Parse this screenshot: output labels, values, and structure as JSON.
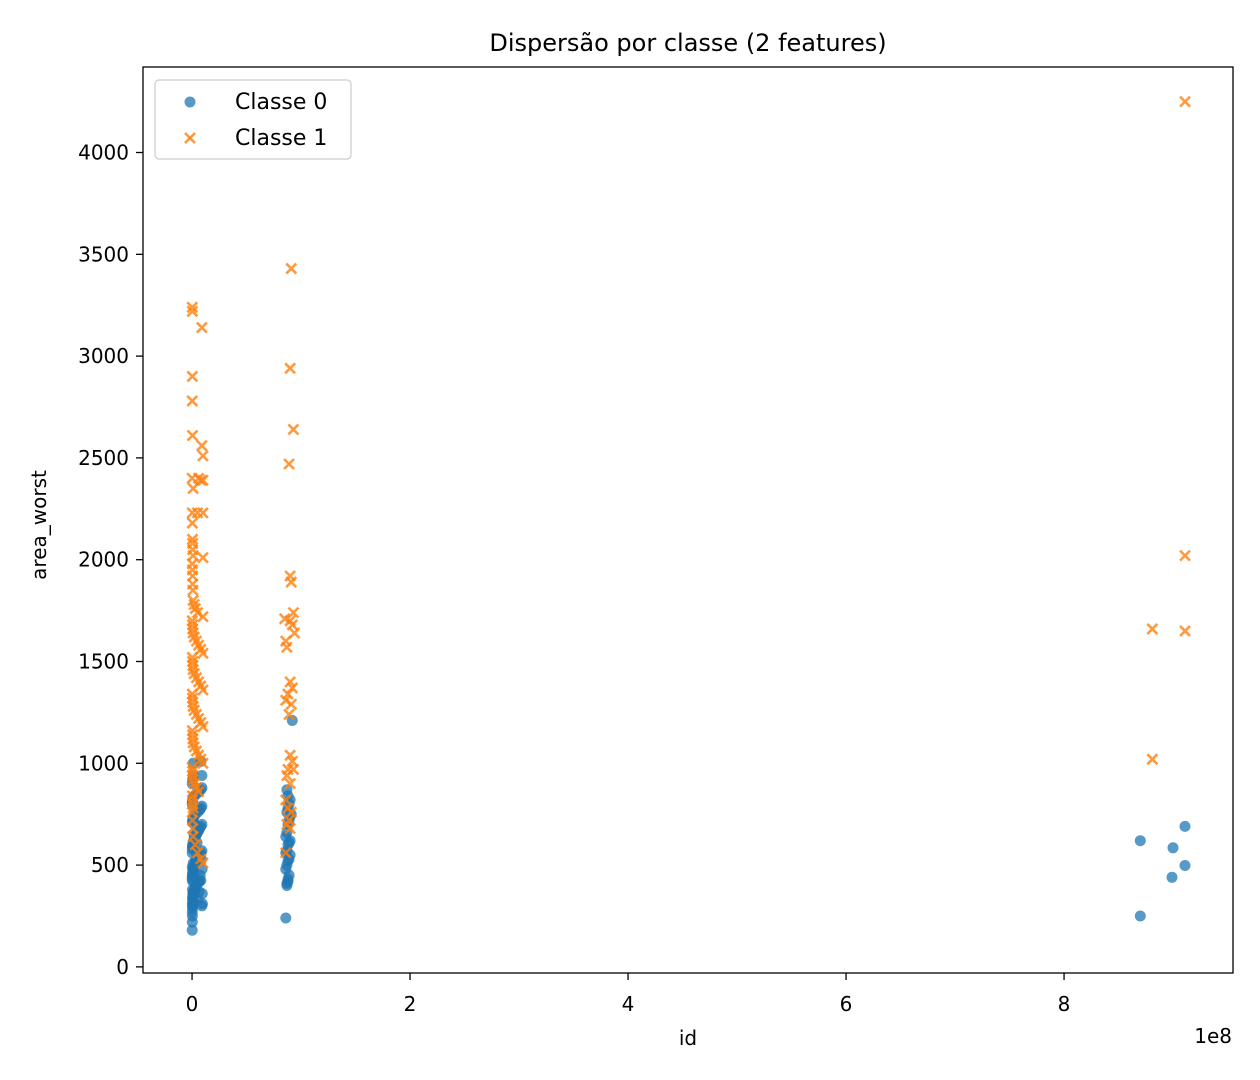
{
  "chart_data": {
    "type": "scatter",
    "title": "Dispersão por classe (2 features)",
    "xlabel": "id",
    "ylabel": "area_worst",
    "x_offset_label": "1e8",
    "x_scale": 100000000,
    "xlim": [
      -0.45,
      9.55
    ],
    "ylim": [
      -30,
      4420
    ],
    "x_ticks": [
      0,
      2,
      4,
      6,
      8
    ],
    "y_ticks": [
      0,
      500,
      1000,
      1500,
      2000,
      2500,
      3000,
      3500,
      4000
    ],
    "legend_position": "upper left",
    "grid": false,
    "series": [
      {
        "name": "Classe 0",
        "marker": "circle",
        "color": "#1f77b4",
        "points": [
          [
            0.001,
            180
          ],
          [
            0.002,
            220
          ],
          [
            0.003,
            250
          ],
          [
            0.002,
            270
          ],
          [
            0.004,
            290
          ],
          [
            0.005,
            300
          ],
          [
            0.003,
            310
          ],
          [
            0.006,
            320
          ],
          [
            0.008,
            330
          ],
          [
            0.004,
            340
          ],
          [
            0.01,
            350
          ],
          [
            0.012,
            355
          ],
          [
            0.007,
            360
          ],
          [
            0.015,
            370
          ],
          [
            0.02,
            375
          ],
          [
            0.025,
            380
          ],
          [
            0.03,
            390
          ],
          [
            0.035,
            400
          ],
          [
            0.04,
            405
          ],
          [
            0.05,
            410
          ],
          [
            0.06,
            415
          ],
          [
            0.07,
            420
          ],
          [
            0.08,
            425
          ],
          [
            0.09,
            300
          ],
          [
            0.095,
            310
          ],
          [
            0.001,
            430
          ],
          [
            0.002,
            440
          ],
          [
            0.003,
            450
          ],
          [
            0.005,
            460
          ],
          [
            0.008,
            470
          ],
          [
            0.01,
            480
          ],
          [
            0.015,
            490
          ],
          [
            0.02,
            500
          ],
          [
            0.03,
            510
          ],
          [
            0.04,
            520
          ],
          [
            0.05,
            530
          ],
          [
            0.06,
            540
          ],
          [
            0.07,
            550
          ],
          [
            0.08,
            560
          ],
          [
            0.09,
            570
          ],
          [
            0.002,
            580
          ],
          [
            0.004,
            590
          ],
          [
            0.006,
            600
          ],
          [
            0.01,
            610
          ],
          [
            0.015,
            620
          ],
          [
            0.02,
            630
          ],
          [
            0.03,
            640
          ],
          [
            0.04,
            650
          ],
          [
            0.05,
            660
          ],
          [
            0.06,
            670
          ],
          [
            0.07,
            680
          ],
          [
            0.08,
            690
          ],
          [
            0.09,
            700
          ],
          [
            0.003,
            710
          ],
          [
            0.006,
            720
          ],
          [
            0.01,
            730
          ],
          [
            0.02,
            740
          ],
          [
            0.03,
            750
          ],
          [
            0.05,
            760
          ],
          [
            0.07,
            770
          ],
          [
            0.08,
            780
          ],
          [
            0.09,
            790
          ],
          [
            0.001,
            800
          ],
          [
            0.003,
            810
          ],
          [
            0.005,
            820
          ],
          [
            0.01,
            830
          ],
          [
            0.02,
            840
          ],
          [
            0.04,
            850
          ],
          [
            0.06,
            860
          ],
          [
            0.08,
            870
          ],
          [
            0.09,
            880
          ],
          [
            0.002,
            900
          ],
          [
            0.005,
            920
          ],
          [
            0.01,
            940
          ],
          [
            0.09,
            940
          ],
          [
            0.08,
            1010
          ],
          [
            0.01,
            1000
          ],
          [
            0.001,
            560
          ],
          [
            0.002,
            490
          ],
          [
            0.004,
            380
          ],
          [
            0.006,
            420
          ],
          [
            0.009,
            460
          ],
          [
            0.011,
            510
          ],
          [
            0.013,
            600
          ],
          [
            0.018,
            650
          ],
          [
            0.022,
            700
          ],
          [
            0.028,
            440
          ],
          [
            0.033,
            520
          ],
          [
            0.038,
            560
          ],
          [
            0.045,
            610
          ],
          [
            0.055,
            330
          ],
          [
            0.065,
            370
          ],
          [
            0.075,
            450
          ],
          [
            0.085,
            530
          ],
          [
            0.092,
            480
          ],
          [
            0.094,
            360
          ],
          [
            0.86,
            240
          ],
          [
            0.87,
            400
          ],
          [
            0.87,
            410
          ],
          [
            0.88,
            420
          ],
          [
            0.88,
            430
          ],
          [
            0.89,
            450
          ],
          [
            0.86,
            480
          ],
          [
            0.87,
            500
          ],
          [
            0.88,
            520
          ],
          [
            0.89,
            530
          ],
          [
            0.9,
            550
          ],
          [
            0.86,
            560
          ],
          [
            0.87,
            570
          ],
          [
            0.88,
            600
          ],
          [
            0.89,
            610
          ],
          [
            0.9,
            620
          ],
          [
            0.86,
            640
          ],
          [
            0.87,
            660
          ],
          [
            0.88,
            700
          ],
          [
            0.89,
            720
          ],
          [
            0.9,
            740
          ],
          [
            0.87,
            760
          ],
          [
            0.88,
            780
          ],
          [
            0.89,
            800
          ],
          [
            0.9,
            820
          ],
          [
            0.91,
            750
          ],
          [
            0.88,
            840
          ],
          [
            0.87,
            870
          ],
          [
            0.92,
            1210
          ],
          [
            8.7,
            250
          ],
          [
            8.7,
            620
          ],
          [
            8.99,
            440
          ],
          [
            9.0,
            585
          ],
          [
            9.11,
            498
          ],
          [
            9.11,
            690
          ]
        ]
      },
      {
        "name": "Classe 1",
        "marker": "x",
        "color": "#ff7f0e",
        "points": [
          [
            0.002,
            3240
          ],
          [
            0.003,
            3220
          ],
          [
            0.09,
            3140
          ],
          [
            0.003,
            2900
          ],
          [
            0.002,
            2780
          ],
          [
            0.004,
            2610
          ],
          [
            0.09,
            2560
          ],
          [
            0.1,
            2510
          ],
          [
            0.001,
            2400
          ],
          [
            0.06,
            2400
          ],
          [
            0.08,
            2390
          ],
          [
            0.1,
            2390
          ],
          [
            0.01,
            2350
          ],
          [
            0.002,
            2230
          ],
          [
            0.05,
            2230
          ],
          [
            0.1,
            2230
          ],
          [
            0.003,
            2180
          ],
          [
            0.004,
            2100
          ],
          [
            0.005,
            2080
          ],
          [
            0.006,
            2050
          ],
          [
            0.01,
            2020
          ],
          [
            0.1,
            2010
          ],
          [
            0.003,
            1980
          ],
          [
            0.004,
            1950
          ],
          [
            0.005,
            1920
          ],
          [
            0.006,
            1880
          ],
          [
            0.008,
            1850
          ],
          [
            0.01,
            1800
          ],
          [
            0.02,
            1780
          ],
          [
            0.03,
            1760
          ],
          [
            0.05,
            1740
          ],
          [
            0.1,
            1720
          ],
          [
            0.002,
            1700
          ],
          [
            0.004,
            1680
          ],
          [
            0.006,
            1660
          ],
          [
            0.01,
            1640
          ],
          [
            0.02,
            1620
          ],
          [
            0.04,
            1600
          ],
          [
            0.06,
            1580
          ],
          [
            0.08,
            1560
          ],
          [
            0.1,
            1540
          ],
          [
            0.003,
            1520
          ],
          [
            0.005,
            1500
          ],
          [
            0.008,
            1480
          ],
          [
            0.01,
            1460
          ],
          [
            0.02,
            1440
          ],
          [
            0.04,
            1420
          ],
          [
            0.06,
            1400
          ],
          [
            0.08,
            1380
          ],
          [
            0.1,
            1360
          ],
          [
            0.002,
            1340
          ],
          [
            0.004,
            1320
          ],
          [
            0.006,
            1300
          ],
          [
            0.01,
            1280
          ],
          [
            0.02,
            1260
          ],
          [
            0.04,
            1240
          ],
          [
            0.06,
            1220
          ],
          [
            0.08,
            1200
          ],
          [
            0.1,
            1180
          ],
          [
            0.003,
            1160
          ],
          [
            0.005,
            1140
          ],
          [
            0.008,
            1120
          ],
          [
            0.01,
            1100
          ],
          [
            0.02,
            1080
          ],
          [
            0.04,
            1060
          ],
          [
            0.06,
            1040
          ],
          [
            0.08,
            1020
          ],
          [
            0.1,
            1000
          ],
          [
            0.002,
            980
          ],
          [
            0.004,
            960
          ],
          [
            0.006,
            940
          ],
          [
            0.01,
            920
          ],
          [
            0.02,
            900
          ],
          [
            0.04,
            880
          ],
          [
            0.06,
            860
          ],
          [
            0.003,
            840
          ],
          [
            0.005,
            820
          ],
          [
            0.008,
            800
          ],
          [
            0.01,
            780
          ],
          [
            0.002,
            760
          ],
          [
            0.004,
            720
          ],
          [
            0.006,
            680
          ],
          [
            0.01,
            640
          ],
          [
            0.03,
            600
          ],
          [
            0.05,
            560
          ],
          [
            0.08,
            530
          ],
          [
            0.1,
            510
          ],
          [
            0.91,
            3430
          ],
          [
            0.9,
            2940
          ],
          [
            0.93,
            2640
          ],
          [
            0.89,
            2470
          ],
          [
            0.9,
            1920
          ],
          [
            0.91,
            1890
          ],
          [
            0.93,
            1740
          ],
          [
            0.85,
            1710
          ],
          [
            0.9,
            1700
          ],
          [
            0.92,
            1680
          ],
          [
            0.94,
            1640
          ],
          [
            0.86,
            1600
          ],
          [
            0.87,
            1570
          ],
          [
            0.9,
            1400
          ],
          [
            0.92,
            1370
          ],
          [
            0.88,
            1340
          ],
          [
            0.86,
            1310
          ],
          [
            0.91,
            1290
          ],
          [
            0.89,
            1240
          ],
          [
            0.9,
            1040
          ],
          [
            0.92,
            1010
          ],
          [
            0.88,
            970
          ],
          [
            0.93,
            970
          ],
          [
            0.87,
            940
          ],
          [
            0.9,
            900
          ],
          [
            0.86,
            820
          ],
          [
            0.88,
            780
          ],
          [
            0.91,
            760
          ],
          [
            0.89,
            720
          ],
          [
            0.87,
            700
          ],
          [
            0.86,
            560
          ],
          [
            0.9,
            680
          ],
          [
            9.11,
            4250
          ],
          [
            9.11,
            2020
          ],
          [
            8.81,
            1660
          ],
          [
            9.11,
            1650
          ],
          [
            8.81,
            1020
          ]
        ]
      }
    ]
  }
}
